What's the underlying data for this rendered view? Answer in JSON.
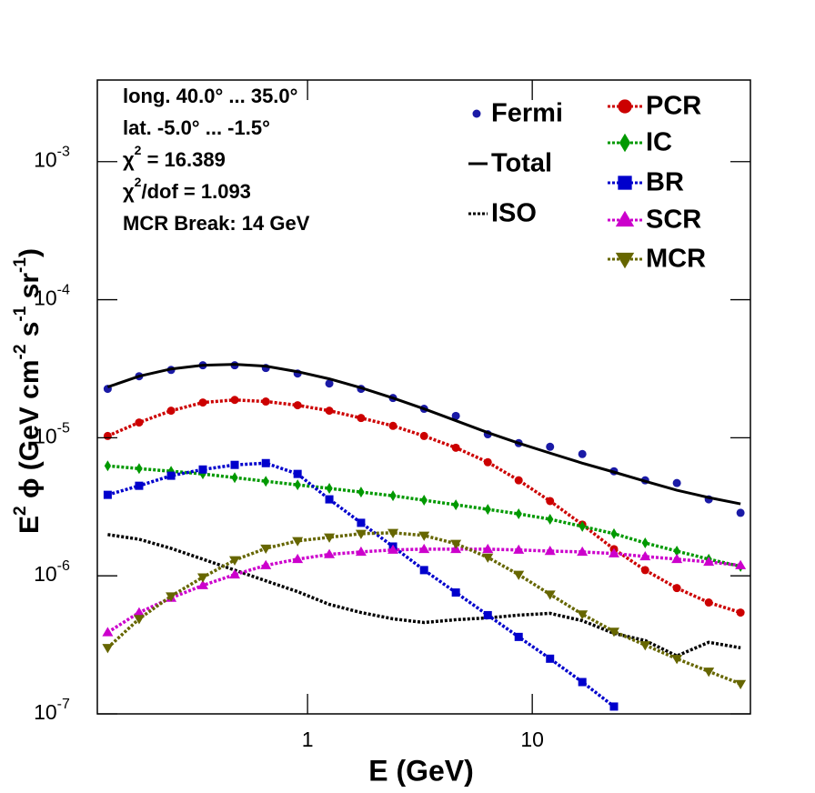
{
  "chart_data": {
    "type": "line",
    "x_label": "E (GeV)",
    "y_label_parts": [
      "E",
      "2",
      " ϕ (GeV cm",
      "-2",
      " s",
      "-1",
      " sr",
      "-1",
      ")"
    ],
    "annotations": [
      [
        "long. 40.0° ... 35.0°"
      ],
      [
        "lat. -5.0° ... -1.5°"
      ],
      [
        "χ",
        "2",
        " = 16.389"
      ],
      [
        "χ",
        "2",
        "/dof = 1.093"
      ],
      [
        "MCR Break: 14 GeV"
      ]
    ],
    "log_x": true,
    "log_y": true,
    "xlim": [
      0.116,
      93.5
    ],
    "ylim": [
      1e-07,
      0.0039
    ],
    "xticks": [
      1,
      10
    ],
    "yticks": [
      {
        "value": 1e-07,
        "label": "10-7"
      },
      {
        "value": 1e-06,
        "label": "10-6"
      },
      {
        "value": 1e-05,
        "label": "10-5"
      },
      {
        "value": 0.0001,
        "label": "10-4"
      },
      {
        "value": 0.001,
        "label": "10-3"
      }
    ],
    "x": [
      0.129,
      0.178,
      0.247,
      0.342,
      0.474,
      0.652,
      0.903,
      1.25,
      1.73,
      2.4,
      3.3,
      4.57,
      6.34,
      8.7,
      12.0,
      16.7,
      23.1,
      31.8,
      44.0,
      61.0,
      84.5
    ],
    "series": [
      {
        "name": "Fermi",
        "color": "#1a1aa6",
        "style": "points",
        "marker": "circle",
        "values": [
          2.26e-05,
          2.79e-05,
          3.1e-05,
          3.35e-05,
          3.35e-05,
          3.2e-05,
          2.92e-05,
          2.47e-05,
          2.26e-05,
          1.94e-05,
          1.62e-05,
          1.44e-05,
          1.06e-05,
          9.14e-06,
          8.6e-06,
          7.62e-06,
          5.72e-06,
          4.92e-06,
          4.7e-06,
          3.58e-06,
          2.86e-06
        ]
      },
      {
        "name": "Total",
        "color": "#000000",
        "style": "solid",
        "marker": "none",
        "values": [
          2.33e-05,
          2.79e-05,
          3.15e-05,
          3.35e-05,
          3.4e-05,
          3.3e-05,
          3.01e-05,
          2.67e-05,
          2.3e-05,
          1.94e-05,
          1.62e-05,
          1.33e-05,
          1.09e-05,
          9.14e-06,
          7.74e-06,
          6.55e-06,
          5.64e-06,
          4.84e-06,
          4.17e-06,
          3.69e-06,
          3.32e-06
        ]
      },
      {
        "name": "ISO",
        "color": "#000000",
        "style": "dotted",
        "marker": "none",
        "values": [
          1.99e-06,
          1.84e-06,
          1.58e-06,
          1.32e-06,
          1.1e-06,
          9.2e-07,
          7.68e-07,
          6.21e-07,
          5.42e-07,
          4.88e-07,
          4.59e-07,
          4.81e-07,
          4.96e-07,
          5.19e-07,
          5.35e-07,
          4.73e-07,
          3.83e-07,
          3.4e-07,
          2.63e-07,
          3.3e-07,
          3.01e-07
        ]
      },
      {
        "name": "PCR",
        "color": "#cc0000",
        "style": "dotted",
        "marker": "circle",
        "values": [
          1.03e-05,
          1.29e-05,
          1.57e-05,
          1.8e-05,
          1.88e-05,
          1.83e-05,
          1.72e-05,
          1.57e-05,
          1.39e-05,
          1.22e-05,
          1.03e-05,
          8.47e-06,
          6.65e-06,
          4.92e-06,
          3.48e-06,
          2.35e-06,
          1.56e-06,
          1.1e-06,
          8.15e-07,
          6.41e-07,
          5.42e-07
        ]
      },
      {
        "name": "IC",
        "color": "#009900",
        "style": "dotted",
        "marker": "diamond",
        "values": [
          6.26e-06,
          5.98e-06,
          5.72e-06,
          5.47e-06,
          5.14e-06,
          4.84e-06,
          4.56e-06,
          4.3e-06,
          4.04e-06,
          3.8e-06,
          3.53e-06,
          3.27e-06,
          3.03e-06,
          2.81e-06,
          2.57e-06,
          2.28e-06,
          2.02e-06,
          1.73e-06,
          1.51e-06,
          1.32e-06,
          1.17e-06
        ]
      },
      {
        "name": "BR",
        "color": "#0000cc",
        "style": "dotted",
        "marker": "square",
        "values": [
          3.86e-06,
          4.49e-06,
          5.31e-06,
          5.89e-06,
          6.36e-06,
          6.55e-06,
          5.47e-06,
          3.58e-06,
          2.42e-06,
          1.63e-06,
          1.1e-06,
          7.57e-07,
          5.19e-07,
          3.61e-07,
          2.51e-07,
          1.7e-07,
          1.13e-07,
          null,
          null,
          null,
          null
        ]
      },
      {
        "name": "SCR",
        "color": "#cc00cc",
        "style": "dotted",
        "marker": "triangle",
        "values": [
          3.89e-07,
          5.42e-07,
          6.91e-07,
          8.53e-07,
          1.02e-06,
          1.19e-06,
          1.32e-06,
          1.43e-06,
          1.49e-06,
          1.54e-06,
          1.56e-06,
          1.56e-06,
          1.56e-06,
          1.54e-06,
          1.51e-06,
          1.49e-06,
          1.45e-06,
          1.38e-06,
          1.32e-06,
          1.26e-06,
          1.19e-06
        ]
      },
      {
        "name": "MCR",
        "color": "#666600",
        "style": "dotted",
        "marker": "triangle-down",
        "values": [
          3.01e-07,
          4.88e-07,
          7.12e-07,
          9.77e-07,
          1.3e-06,
          1.58e-06,
          1.79e-06,
          1.9e-06,
          2.02e-06,
          2.05e-06,
          1.96e-06,
          1.71e-06,
          1.36e-06,
          1.02e-06,
          7.34e-07,
          5.27e-07,
          3.95e-07,
          3.15e-07,
          2.51e-07,
          2.03e-07,
          1.65e-07
        ]
      }
    ]
  }
}
